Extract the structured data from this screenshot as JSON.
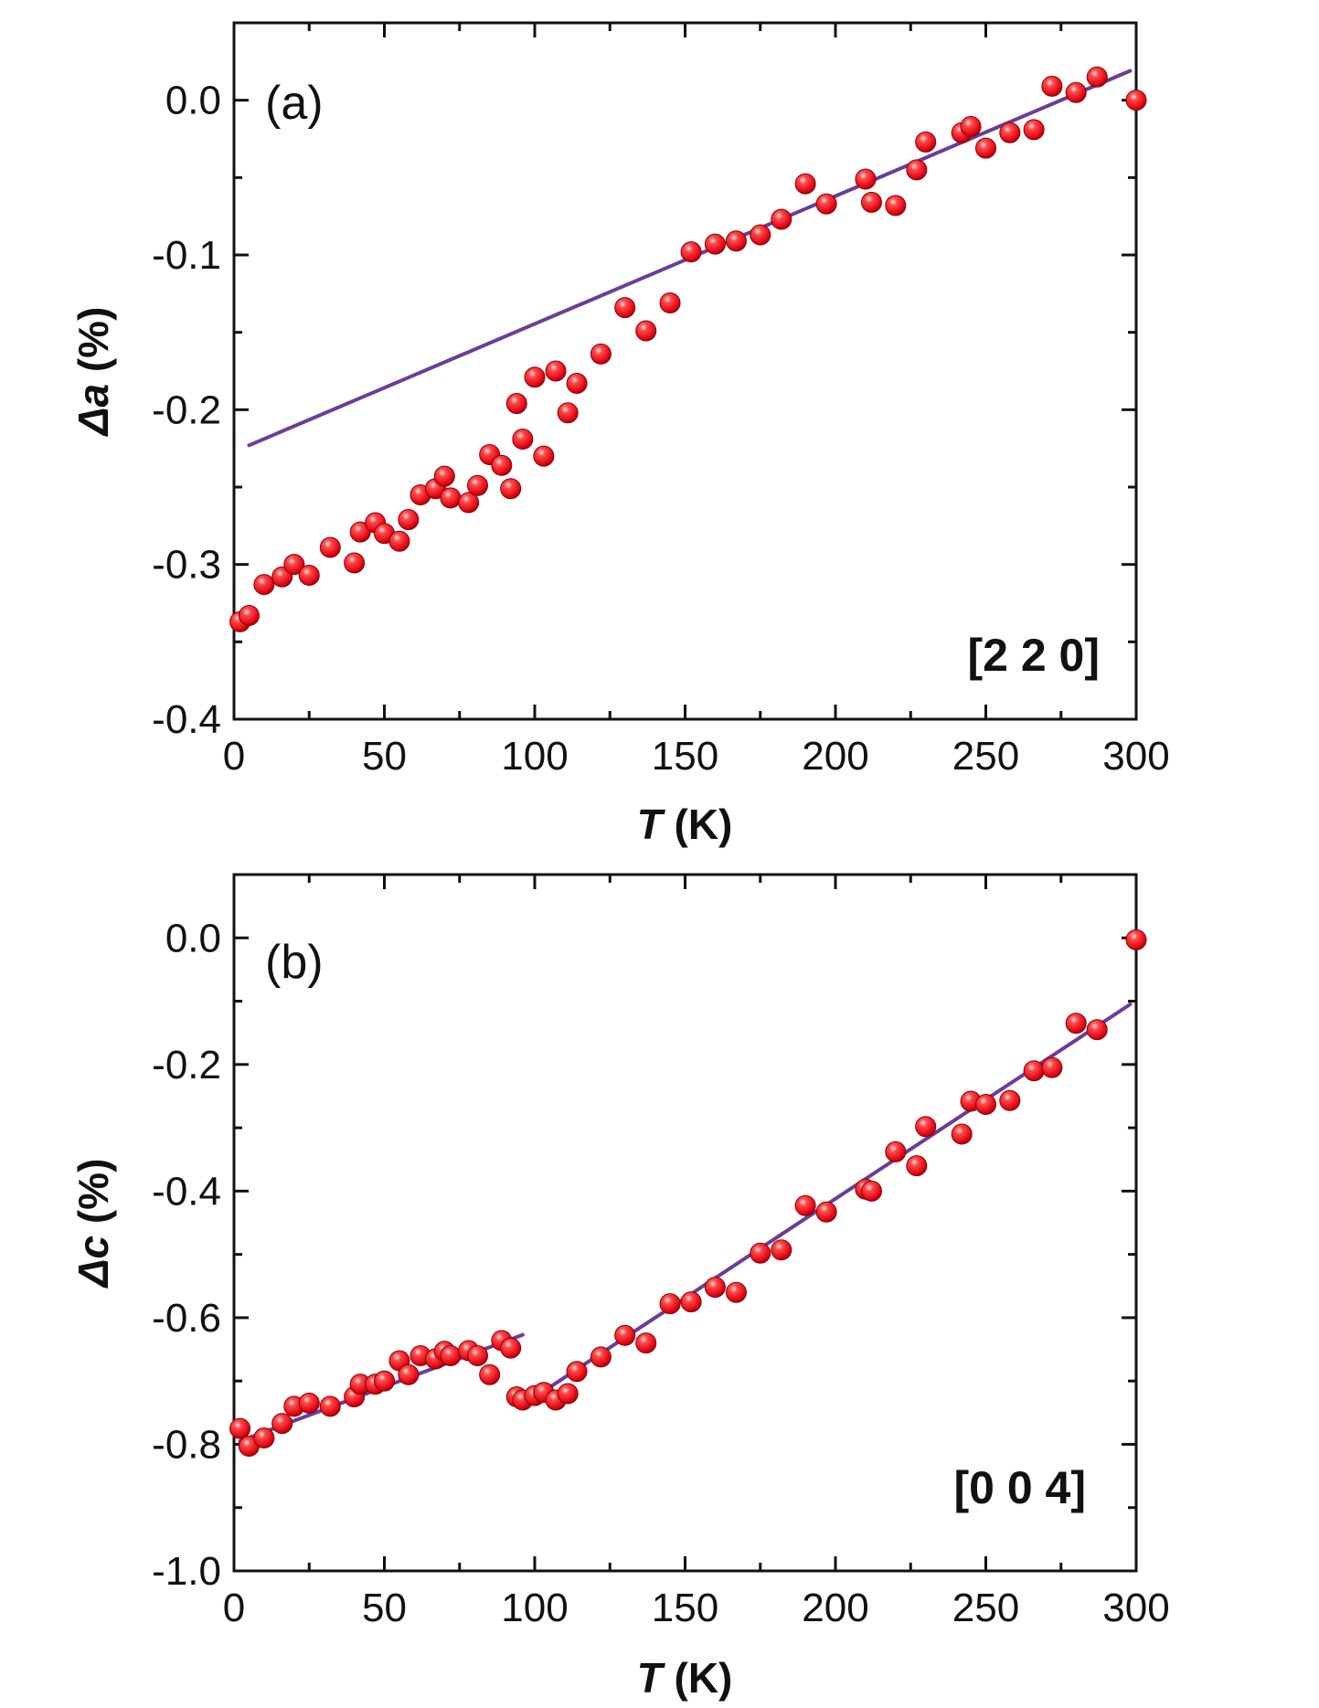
{
  "chart_data": [
    {
      "type": "scatter",
      "panel_label": "(a)",
      "annotation": "[2 2 0]",
      "xlabel": {
        "italic": "T",
        "rest": " (K)"
      },
      "ylabel": {
        "prefix": "Δ",
        "italic": "a",
        "rest": " (%)"
      },
      "xlim": [
        0,
        300
      ],
      "ylim": [
        -0.4,
        0.05
      ],
      "xticks": [
        0,
        50,
        100,
        150,
        200,
        250,
        300
      ],
      "xtick_labels": [
        "0",
        "50",
        "100",
        "150",
        "200",
        "250",
        "300"
      ],
      "yticks": [
        -0.4,
        -0.3,
        -0.2,
        -0.1,
        0.0
      ],
      "ytick_labels": [
        "-0.4",
        "-0.3",
        "-0.2",
        "-0.1",
        "0.0"
      ],
      "points": [
        [
          2,
          -0.337
        ],
        [
          5,
          -0.333
        ],
        [
          10,
          -0.313
        ],
        [
          16,
          -0.308
        ],
        [
          20,
          -0.3
        ],
        [
          25,
          -0.307
        ],
        [
          32,
          -0.289
        ],
        [
          40,
          -0.299
        ],
        [
          42,
          -0.279
        ],
        [
          47,
          -0.273
        ],
        [
          50,
          -0.28
        ],
        [
          55,
          -0.285
        ],
        [
          58,
          -0.271
        ],
        [
          62,
          -0.255
        ],
        [
          67,
          -0.251
        ],
        [
          70,
          -0.243
        ],
        [
          72,
          -0.257
        ],
        [
          78,
          -0.26
        ],
        [
          81,
          -0.249
        ],
        [
          85,
          -0.229
        ],
        [
          89,
          -0.236
        ],
        [
          92,
          -0.251
        ],
        [
          94,
          -0.196
        ],
        [
          96,
          -0.219
        ],
        [
          100,
          -0.179
        ],
        [
          103,
          -0.23
        ],
        [
          107,
          -0.175
        ],
        [
          111,
          -0.202
        ],
        [
          114,
          -0.183
        ],
        [
          122,
          -0.164
        ],
        [
          130,
          -0.134
        ],
        [
          137,
          -0.149
        ],
        [
          145,
          -0.131
        ],
        [
          152,
          -0.098
        ],
        [
          160,
          -0.093
        ],
        [
          167,
          -0.091
        ],
        [
          175,
          -0.087
        ],
        [
          182,
          -0.077
        ],
        [
          190,
          -0.054
        ],
        [
          197,
          -0.067
        ],
        [
          210,
          -0.051
        ],
        [
          212,
          -0.066
        ],
        [
          220,
          -0.068
        ],
        [
          227,
          -0.045
        ],
        [
          230,
          -0.027
        ],
        [
          242,
          -0.021
        ],
        [
          245,
          -0.017
        ],
        [
          250,
          -0.031
        ],
        [
          258,
          -0.021
        ],
        [
          266,
          -0.019
        ],
        [
          272,
          0.009
        ],
        [
          280,
          0.005
        ],
        [
          287,
          0.015
        ],
        [
          300,
          0.0
        ]
      ],
      "fit_lines": [
        {
          "x": [
            5,
            298
          ],
          "y": [
            -0.223,
            0.019
          ]
        }
      ]
    },
    {
      "type": "scatter",
      "panel_label": "(b)",
      "annotation": "[0 0 4]",
      "xlabel": {
        "italic": "T",
        "rest": " (K)"
      },
      "ylabel": {
        "prefix": "Δ",
        "italic": "c",
        "rest": " (%)"
      },
      "xlim": [
        0,
        300
      ],
      "ylim": [
        -1.0,
        0.1
      ],
      "xticks": [
        0,
        50,
        100,
        150,
        200,
        250,
        300
      ],
      "xtick_labels": [
        "0",
        "50",
        "100",
        "150",
        "200",
        "250",
        "300"
      ],
      "yticks": [
        -1.0,
        -0.8,
        -0.6,
        -0.4,
        -0.2,
        0.0
      ],
      "ytick_labels": [
        "-1.0",
        "-0.8",
        "-0.6",
        "-0.4",
        "-0.2",
        "0.0"
      ],
      "points": [
        [
          2,
          -0.775
        ],
        [
          5,
          -0.803
        ],
        [
          10,
          -0.79
        ],
        [
          16,
          -0.767
        ],
        [
          20,
          -0.74
        ],
        [
          25,
          -0.735
        ],
        [
          32,
          -0.74
        ],
        [
          40,
          -0.725
        ],
        [
          42,
          -0.705
        ],
        [
          47,
          -0.705
        ],
        [
          50,
          -0.7
        ],
        [
          55,
          -0.668
        ],
        [
          58,
          -0.69
        ],
        [
          62,
          -0.66
        ],
        [
          67,
          -0.665
        ],
        [
          70,
          -0.653
        ],
        [
          72,
          -0.66
        ],
        [
          78,
          -0.652
        ],
        [
          81,
          -0.66
        ],
        [
          85,
          -0.69
        ],
        [
          89,
          -0.636
        ],
        [
          92,
          -0.648
        ],
        [
          94,
          -0.725
        ],
        [
          96,
          -0.73
        ],
        [
          100,
          -0.723
        ],
        [
          103,
          -0.718
        ],
        [
          107,
          -0.73
        ],
        [
          111,
          -0.72
        ],
        [
          114,
          -0.685
        ],
        [
          122,
          -0.662
        ],
        [
          130,
          -0.628
        ],
        [
          137,
          -0.64
        ],
        [
          145,
          -0.578
        ],
        [
          152,
          -0.575
        ],
        [
          160,
          -0.552
        ],
        [
          167,
          -0.56
        ],
        [
          175,
          -0.498
        ],
        [
          182,
          -0.493
        ],
        [
          190,
          -0.423
        ],
        [
          197,
          -0.433
        ],
        [
          210,
          -0.397
        ],
        [
          212,
          -0.4
        ],
        [
          220,
          -0.338
        ],
        [
          227,
          -0.36
        ],
        [
          230,
          -0.298
        ],
        [
          242,
          -0.31
        ],
        [
          245,
          -0.258
        ],
        [
          250,
          -0.263
        ],
        [
          258,
          -0.257
        ],
        [
          266,
          -0.21
        ],
        [
          272,
          -0.205
        ],
        [
          280,
          -0.135
        ],
        [
          287,
          -0.145
        ],
        [
          300,
          -0.003
        ]
      ],
      "fit_lines": [
        {
          "x": [
            2,
            96
          ],
          "y": [
            -0.795,
            -0.627
          ]
        },
        {
          "x": [
            96,
            298
          ],
          "y": [
            -0.738,
            -0.105
          ]
        }
      ]
    }
  ],
  "colors": {
    "marker_fill": "#e30613",
    "marker_edge": "#8a0008",
    "marker_highlight": "#ffd6d6",
    "fit_line": "#6a3d9a",
    "axis": "#111111"
  }
}
